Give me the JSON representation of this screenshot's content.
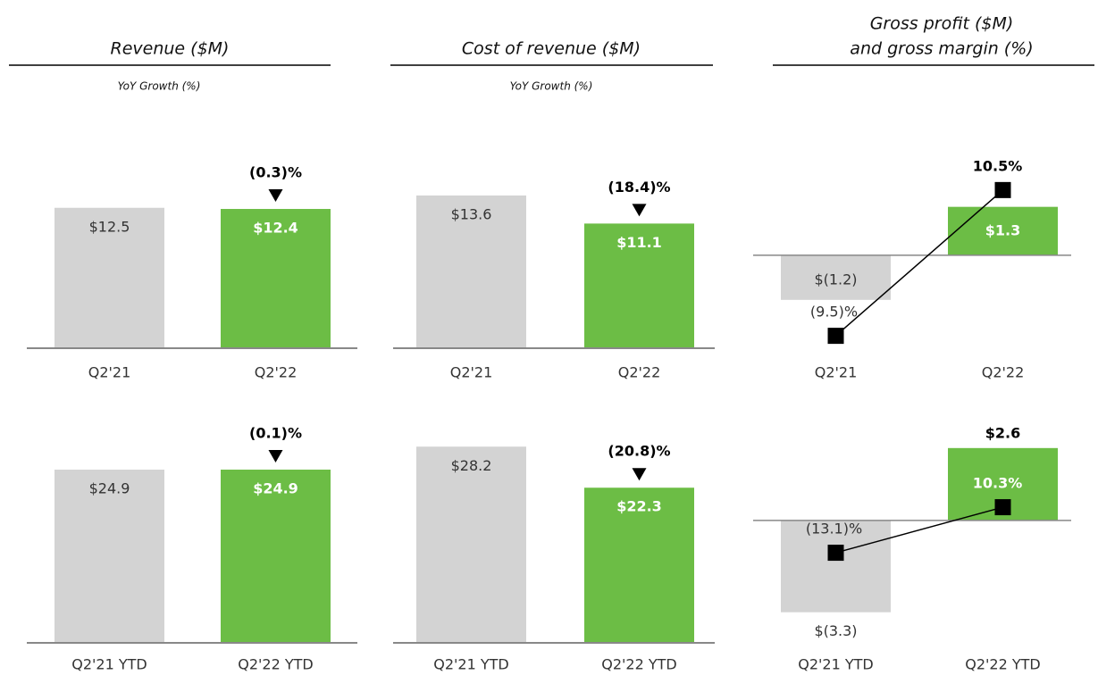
{
  "columns": [
    {
      "title": [
        "Revenue ($M)"
      ],
      "subtitle": "YoY Growth (%)"
    },
    {
      "title": [
        "Cost of revenue ($M)"
      ],
      "subtitle": "YoY Growth (%)"
    },
    {
      "title": [
        "Gross profit ($M)",
        "and gross margin (%)"
      ]
    }
  ],
  "chart_data": [
    {
      "type": "bar",
      "categories": [
        "Q2'21",
        "Q2'22"
      ],
      "values": [
        12.5,
        12.4
      ],
      "value_labels": [
        "$12.5",
        "$12.4"
      ],
      "colors": [
        "#d3d3d3",
        "#6cbd45"
      ],
      "annotation": "(0.3)%",
      "ylim": [
        0,
        15.9
      ]
    },
    {
      "type": "bar",
      "categories": [
        "Q2'21",
        "Q2'22"
      ],
      "values": [
        13.6,
        11.1
      ],
      "value_labels": [
        "$13.6",
        "$11.1"
      ],
      "colors": [
        "#d3d3d3",
        "#6cbd45"
      ],
      "annotation": "(18.4)%",
      "ylim": [
        0,
        15.9
      ]
    },
    {
      "type": "bar_line",
      "categories": [
        "Q2'21",
        "Q2'22"
      ],
      "values": [
        -1.2,
        1.3
      ],
      "value_labels": [
        "$(1.2)",
        "$1.3"
      ],
      "colors": [
        "#d3d3d3",
        "#6cbd45"
      ],
      "ylim": [
        -2.5,
        2.3
      ],
      "y2_values": [
        -9.5,
        10.5
      ],
      "y2_value_labels": [
        "(9.5)%",
        "10.5%"
      ],
      "y2lim": [
        -11.2,
        13.3
      ],
      "line_color": "#000000"
    },
    {
      "type": "bar",
      "categories": [
        "Q2'21 YTD",
        "Q2'22 YTD"
      ],
      "values": [
        24.9,
        24.9
      ],
      "value_labels": [
        "$24.9",
        "$24.9"
      ],
      "colors": [
        "#d3d3d3",
        "#6cbd45"
      ],
      "annotation": "(0.1)%",
      "ylim": [
        0,
        30.8
      ]
    },
    {
      "type": "bar",
      "categories": [
        "Q2'21 YTD",
        "Q2'22 YTD"
      ],
      "values": [
        28.2,
        22.3
      ],
      "value_labels": [
        "$28.2",
        "$22.3"
      ],
      "colors": [
        "#d3d3d3",
        "#6cbd45"
      ],
      "annotation": "(20.8)%",
      "ylim": [
        0,
        30.8
      ]
    },
    {
      "type": "bar_line",
      "categories": [
        "Q2'21 YTD",
        "Q2'22 YTD"
      ],
      "values": [
        -3.3,
        2.6
      ],
      "value_labels": [
        "$(3.3)",
        "$2.6"
      ],
      "colors": [
        "#d3d3d3",
        "#6cbd45"
      ],
      "ylim": [
        -4.4,
        3.3
      ],
      "y2_values": [
        -13.1,
        10.3
      ],
      "y2_value_labels": [
        "(13.1)%",
        "10.3%"
      ],
      "y2lim": [
        -59.4,
        50.7
      ],
      "line_color": "#000000"
    }
  ]
}
